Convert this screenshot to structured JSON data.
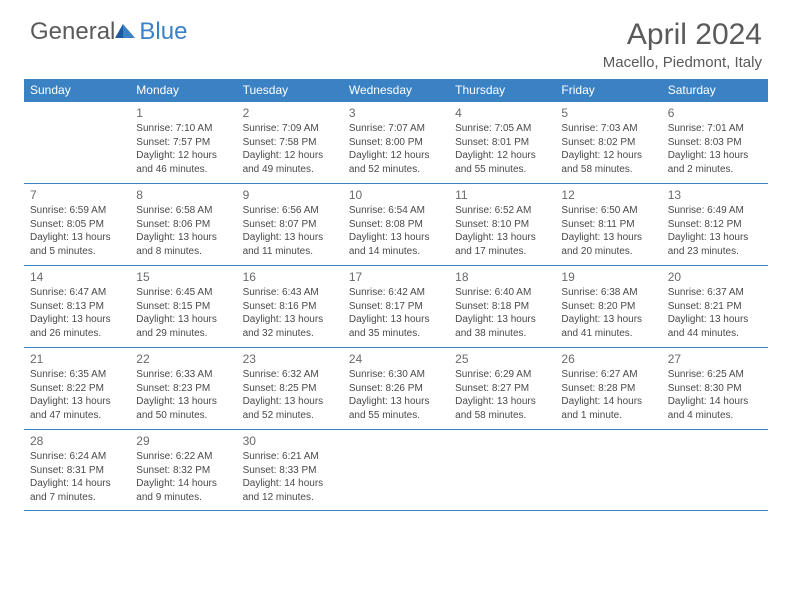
{
  "logo": {
    "general": "General",
    "blue": "Blue"
  },
  "header": {
    "title": "April 2024",
    "location": "Macello, Piedmont, Italy"
  },
  "colors": {
    "header_bg": "#3b82c4",
    "header_text": "#ffffff",
    "border": "#3b82c4",
    "body_text": "#4a4a4a",
    "daynum_text": "#6a6a6a",
    "logo_gray": "#5a5a5a",
    "logo_blue": "#3b7fc4"
  },
  "weekdays": [
    "Sunday",
    "Monday",
    "Tuesday",
    "Wednesday",
    "Thursday",
    "Friday",
    "Saturday"
  ],
  "weeks": [
    [
      null,
      {
        "num": "1",
        "sunrise": "Sunrise: 7:10 AM",
        "sunset": "Sunset: 7:57 PM",
        "daylight": "Daylight: 12 hours and 46 minutes."
      },
      {
        "num": "2",
        "sunrise": "Sunrise: 7:09 AM",
        "sunset": "Sunset: 7:58 PM",
        "daylight": "Daylight: 12 hours and 49 minutes."
      },
      {
        "num": "3",
        "sunrise": "Sunrise: 7:07 AM",
        "sunset": "Sunset: 8:00 PM",
        "daylight": "Daylight: 12 hours and 52 minutes."
      },
      {
        "num": "4",
        "sunrise": "Sunrise: 7:05 AM",
        "sunset": "Sunset: 8:01 PM",
        "daylight": "Daylight: 12 hours and 55 minutes."
      },
      {
        "num": "5",
        "sunrise": "Sunrise: 7:03 AM",
        "sunset": "Sunset: 8:02 PM",
        "daylight": "Daylight: 12 hours and 58 minutes."
      },
      {
        "num": "6",
        "sunrise": "Sunrise: 7:01 AM",
        "sunset": "Sunset: 8:03 PM",
        "daylight": "Daylight: 13 hours and 2 minutes."
      }
    ],
    [
      {
        "num": "7",
        "sunrise": "Sunrise: 6:59 AM",
        "sunset": "Sunset: 8:05 PM",
        "daylight": "Daylight: 13 hours and 5 minutes."
      },
      {
        "num": "8",
        "sunrise": "Sunrise: 6:58 AM",
        "sunset": "Sunset: 8:06 PM",
        "daylight": "Daylight: 13 hours and 8 minutes."
      },
      {
        "num": "9",
        "sunrise": "Sunrise: 6:56 AM",
        "sunset": "Sunset: 8:07 PM",
        "daylight": "Daylight: 13 hours and 11 minutes."
      },
      {
        "num": "10",
        "sunrise": "Sunrise: 6:54 AM",
        "sunset": "Sunset: 8:08 PM",
        "daylight": "Daylight: 13 hours and 14 minutes."
      },
      {
        "num": "11",
        "sunrise": "Sunrise: 6:52 AM",
        "sunset": "Sunset: 8:10 PM",
        "daylight": "Daylight: 13 hours and 17 minutes."
      },
      {
        "num": "12",
        "sunrise": "Sunrise: 6:50 AM",
        "sunset": "Sunset: 8:11 PM",
        "daylight": "Daylight: 13 hours and 20 minutes."
      },
      {
        "num": "13",
        "sunrise": "Sunrise: 6:49 AM",
        "sunset": "Sunset: 8:12 PM",
        "daylight": "Daylight: 13 hours and 23 minutes."
      }
    ],
    [
      {
        "num": "14",
        "sunrise": "Sunrise: 6:47 AM",
        "sunset": "Sunset: 8:13 PM",
        "daylight": "Daylight: 13 hours and 26 minutes."
      },
      {
        "num": "15",
        "sunrise": "Sunrise: 6:45 AM",
        "sunset": "Sunset: 8:15 PM",
        "daylight": "Daylight: 13 hours and 29 minutes."
      },
      {
        "num": "16",
        "sunrise": "Sunrise: 6:43 AM",
        "sunset": "Sunset: 8:16 PM",
        "daylight": "Daylight: 13 hours and 32 minutes."
      },
      {
        "num": "17",
        "sunrise": "Sunrise: 6:42 AM",
        "sunset": "Sunset: 8:17 PM",
        "daylight": "Daylight: 13 hours and 35 minutes."
      },
      {
        "num": "18",
        "sunrise": "Sunrise: 6:40 AM",
        "sunset": "Sunset: 8:18 PM",
        "daylight": "Daylight: 13 hours and 38 minutes."
      },
      {
        "num": "19",
        "sunrise": "Sunrise: 6:38 AM",
        "sunset": "Sunset: 8:20 PM",
        "daylight": "Daylight: 13 hours and 41 minutes."
      },
      {
        "num": "20",
        "sunrise": "Sunrise: 6:37 AM",
        "sunset": "Sunset: 8:21 PM",
        "daylight": "Daylight: 13 hours and 44 minutes."
      }
    ],
    [
      {
        "num": "21",
        "sunrise": "Sunrise: 6:35 AM",
        "sunset": "Sunset: 8:22 PM",
        "daylight": "Daylight: 13 hours and 47 minutes."
      },
      {
        "num": "22",
        "sunrise": "Sunrise: 6:33 AM",
        "sunset": "Sunset: 8:23 PM",
        "daylight": "Daylight: 13 hours and 50 minutes."
      },
      {
        "num": "23",
        "sunrise": "Sunrise: 6:32 AM",
        "sunset": "Sunset: 8:25 PM",
        "daylight": "Daylight: 13 hours and 52 minutes."
      },
      {
        "num": "24",
        "sunrise": "Sunrise: 6:30 AM",
        "sunset": "Sunset: 8:26 PM",
        "daylight": "Daylight: 13 hours and 55 minutes."
      },
      {
        "num": "25",
        "sunrise": "Sunrise: 6:29 AM",
        "sunset": "Sunset: 8:27 PM",
        "daylight": "Daylight: 13 hours and 58 minutes."
      },
      {
        "num": "26",
        "sunrise": "Sunrise: 6:27 AM",
        "sunset": "Sunset: 8:28 PM",
        "daylight": "Daylight: 14 hours and 1 minute."
      },
      {
        "num": "27",
        "sunrise": "Sunrise: 6:25 AM",
        "sunset": "Sunset: 8:30 PM",
        "daylight": "Daylight: 14 hours and 4 minutes."
      }
    ],
    [
      {
        "num": "28",
        "sunrise": "Sunrise: 6:24 AM",
        "sunset": "Sunset: 8:31 PM",
        "daylight": "Daylight: 14 hours and 7 minutes."
      },
      {
        "num": "29",
        "sunrise": "Sunrise: 6:22 AM",
        "sunset": "Sunset: 8:32 PM",
        "daylight": "Daylight: 14 hours and 9 minutes."
      },
      {
        "num": "30",
        "sunrise": "Sunrise: 6:21 AM",
        "sunset": "Sunset: 8:33 PM",
        "daylight": "Daylight: 14 hours and 12 minutes."
      },
      null,
      null,
      null,
      null
    ]
  ]
}
